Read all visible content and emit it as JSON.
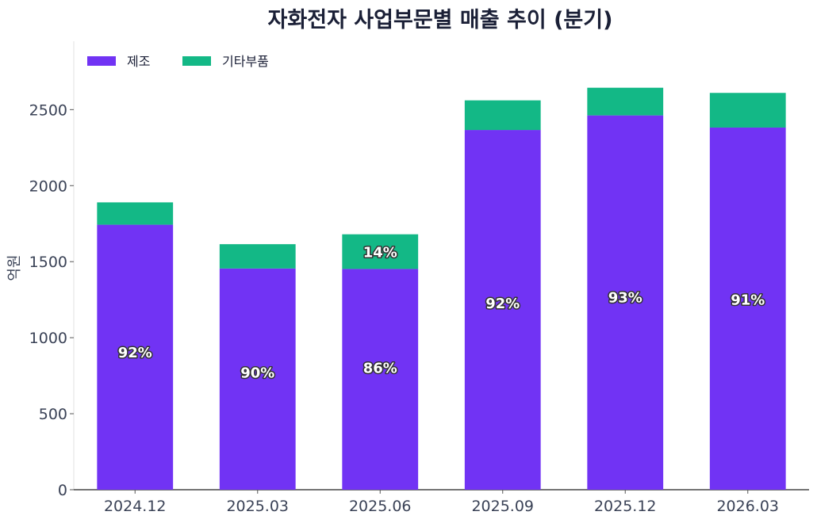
{
  "chart_data": {
    "type": "bar",
    "stacked": true,
    "title": "자화전자 사업부문별 매출 추이 (분기)",
    "xlabel": "",
    "ylabel": "억원",
    "categories": [
      "2024.12",
      "2025.03",
      "2025.06",
      "2025.09",
      "2025.12",
      "2026.03"
    ],
    "series": [
      {
        "name": "제조",
        "color": "#7133f4",
        "values": [
          1743,
          1455,
          1452,
          2366,
          2462,
          2382
        ]
      },
      {
        "name": "기타부품",
        "color": "#13b886",
        "values": [
          147,
          160,
          228,
          195,
          182,
          228
        ]
      }
    ],
    "data_labels": [
      {
        "category": "2024.12",
        "series": "제조",
        "text": "92%"
      },
      {
        "category": "2025.03",
        "series": "제조",
        "text": "90%"
      },
      {
        "category": "2025.06",
        "series": "제조",
        "text": "86%"
      },
      {
        "category": "2025.06",
        "series": "기타부품",
        "text": "14%"
      },
      {
        "category": "2025.09",
        "series": "제조",
        "text": "92%"
      },
      {
        "category": "2025.12",
        "series": "제조",
        "text": "93%"
      },
      {
        "category": "2026.03",
        "series": "제조",
        "text": "91%"
      }
    ],
    "ylim": [
      0,
      2950
    ],
    "yticks": [
      0,
      500,
      1000,
      1500,
      2000,
      2500
    ],
    "grid": false,
    "legend_position": "top-left"
  }
}
